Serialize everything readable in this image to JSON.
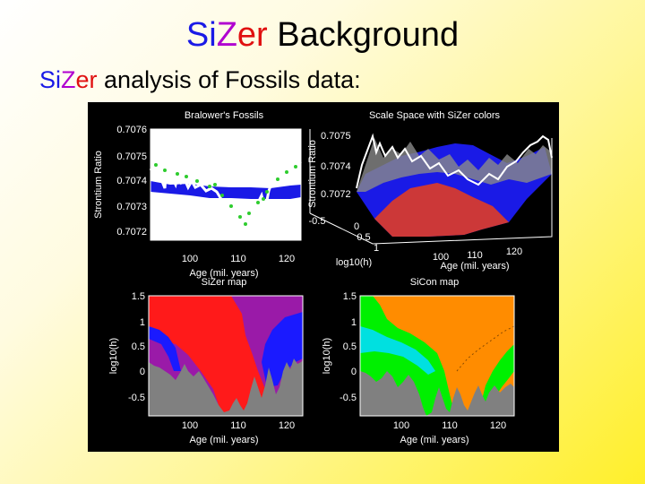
{
  "slide": {
    "title": {
      "si": "Si",
      "z": "Z",
      "er": "er",
      "rest": " Background"
    },
    "subtitle": {
      "si": "Si",
      "z": "Z",
      "er": "er",
      "rest": " analysis of Fossils data:"
    }
  },
  "colors": {
    "si": "#1a1ae6",
    "z": "#b000d0",
    "er": "#e01010",
    "sizer_increasing": "#1a1aff",
    "sizer_decreasing": "#ff1a1a",
    "sizer_insignificant": "#9a1aa8",
    "sizer_sparse": "#808080",
    "sicon_increasing": "#ff8c00",
    "sicon_decreasing": "#00f000",
    "sicon_insignificant": "#00e0e0"
  },
  "panels": {
    "p1": {
      "title": "Bralower's Fossils",
      "ylabel": "Strontium Ratio",
      "xlabel": "Age (mil. years)",
      "yticks": [
        "0.7076",
        "0.7075",
        "0.7074",
        "0.7073",
        "0.7072"
      ],
      "xticks": [
        "100",
        "110",
        "120"
      ]
    },
    "p2": {
      "title": "Scale Space with SiZer colors",
      "ylabel": "Strontium Ratio",
      "zticks": [
        "0.7075",
        "0.7074",
        "0.7072"
      ],
      "hticks": [
        "-0.5",
        "0",
        "0.5",
        "1"
      ],
      "hlabel": "log10(h)",
      "xticks": [
        "100",
        "110",
        "120"
      ],
      "xlabel": "Age (mil. years)"
    },
    "p3": {
      "title": "SiZer map",
      "ylabel": "log10(h)",
      "xlabel": "Age (mil. years)",
      "yticks": [
        "1.5",
        "1",
        "0.5",
        "0",
        "-0.5"
      ],
      "xticks": [
        "100",
        "110",
        "120"
      ]
    },
    "p4": {
      "title": "SiCon map",
      "ylabel": "log10(h)",
      "xlabel": "Age (mil. years)",
      "yticks": [
        "1.5",
        "1",
        "0.5",
        "0",
        "-0.5"
      ],
      "xticks": [
        "100",
        "110",
        "120"
      ]
    }
  }
}
